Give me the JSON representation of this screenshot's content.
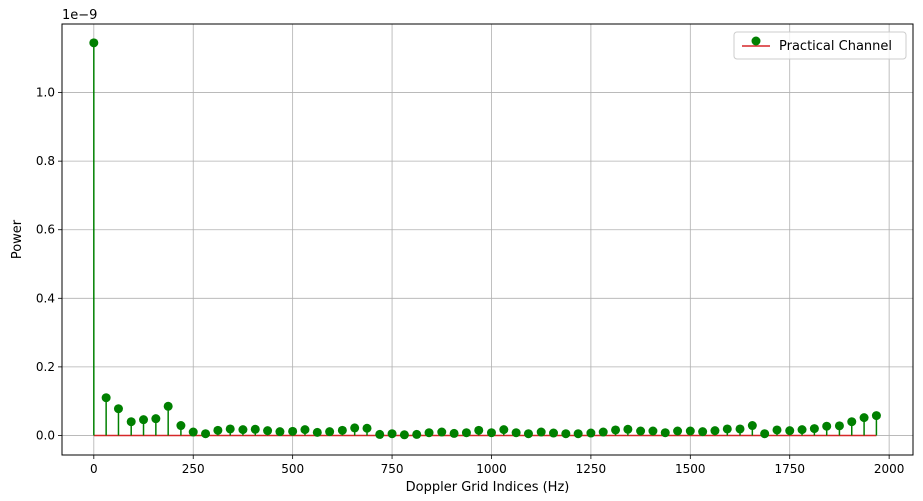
{
  "chart_data": {
    "type": "stem",
    "xlabel": "Doppler Grid Indices (Hz)",
    "ylabel": "Power",
    "y_offset_text": "1e−9",
    "xlim": [
      -80,
      2060
    ],
    "ylim": [
      -0.057,
      1.2
    ],
    "x_ticks": [
      0,
      250,
      500,
      750,
      1000,
      1250,
      1500,
      1750,
      2000
    ],
    "y_ticks": [
      0.0,
      0.2,
      0.4,
      0.6,
      0.8,
      1.0
    ],
    "y_tick_labels": [
      "0.0",
      "0.2",
      "0.4",
      "0.6",
      "0.8",
      "1.0"
    ],
    "grid": true,
    "legend": {
      "position": "top-right",
      "entries": [
        "Practical Channel"
      ]
    },
    "colors": {
      "markers": "#008000",
      "stems": "#008000",
      "baseline": "#d62728"
    },
    "series": [
      {
        "name": "Practical Channel",
        "x": [
          0,
          31,
          62,
          94,
          125,
          156,
          187,
          219,
          250,
          281,
          312,
          343,
          375,
          406,
          437,
          468,
          500,
          531,
          562,
          593,
          625,
          656,
          687,
          719,
          750,
          781,
          812,
          843,
          875,
          906,
          937,
          968,
          1000,
          1031,
          1062,
          1093,
          1125,
          1156,
          1187,
          1218,
          1250,
          1281,
          1312,
          1343,
          1375,
          1406,
          1437,
          1468,
          1500,
          1531,
          1562,
          1593,
          1625,
          1656,
          1687,
          1718,
          1750,
          1781,
          1812,
          1843,
          1875,
          1906,
          1937,
          1968
        ],
        "values": [
          1.145,
          0.11,
          0.078,
          0.04,
          0.046,
          0.049,
          0.085,
          0.029,
          0.01,
          0.005,
          0.015,
          0.019,
          0.017,
          0.018,
          0.014,
          0.011,
          0.012,
          0.017,
          0.009,
          0.011,
          0.015,
          0.022,
          0.021,
          0.003,
          0.005,
          0.002,
          0.003,
          0.008,
          0.01,
          0.006,
          0.008,
          0.015,
          0.008,
          0.017,
          0.008,
          0.005,
          0.01,
          0.007,
          0.005,
          0.005,
          0.007,
          0.01,
          0.016,
          0.018,
          0.013,
          0.013,
          0.008,
          0.013,
          0.013,
          0.011,
          0.014,
          0.019,
          0.019,
          0.029,
          0.005,
          0.016,
          0.014,
          0.017,
          0.02,
          0.027,
          0.028,
          0.04,
          0.052,
          0.058
        ]
      }
    ]
  }
}
